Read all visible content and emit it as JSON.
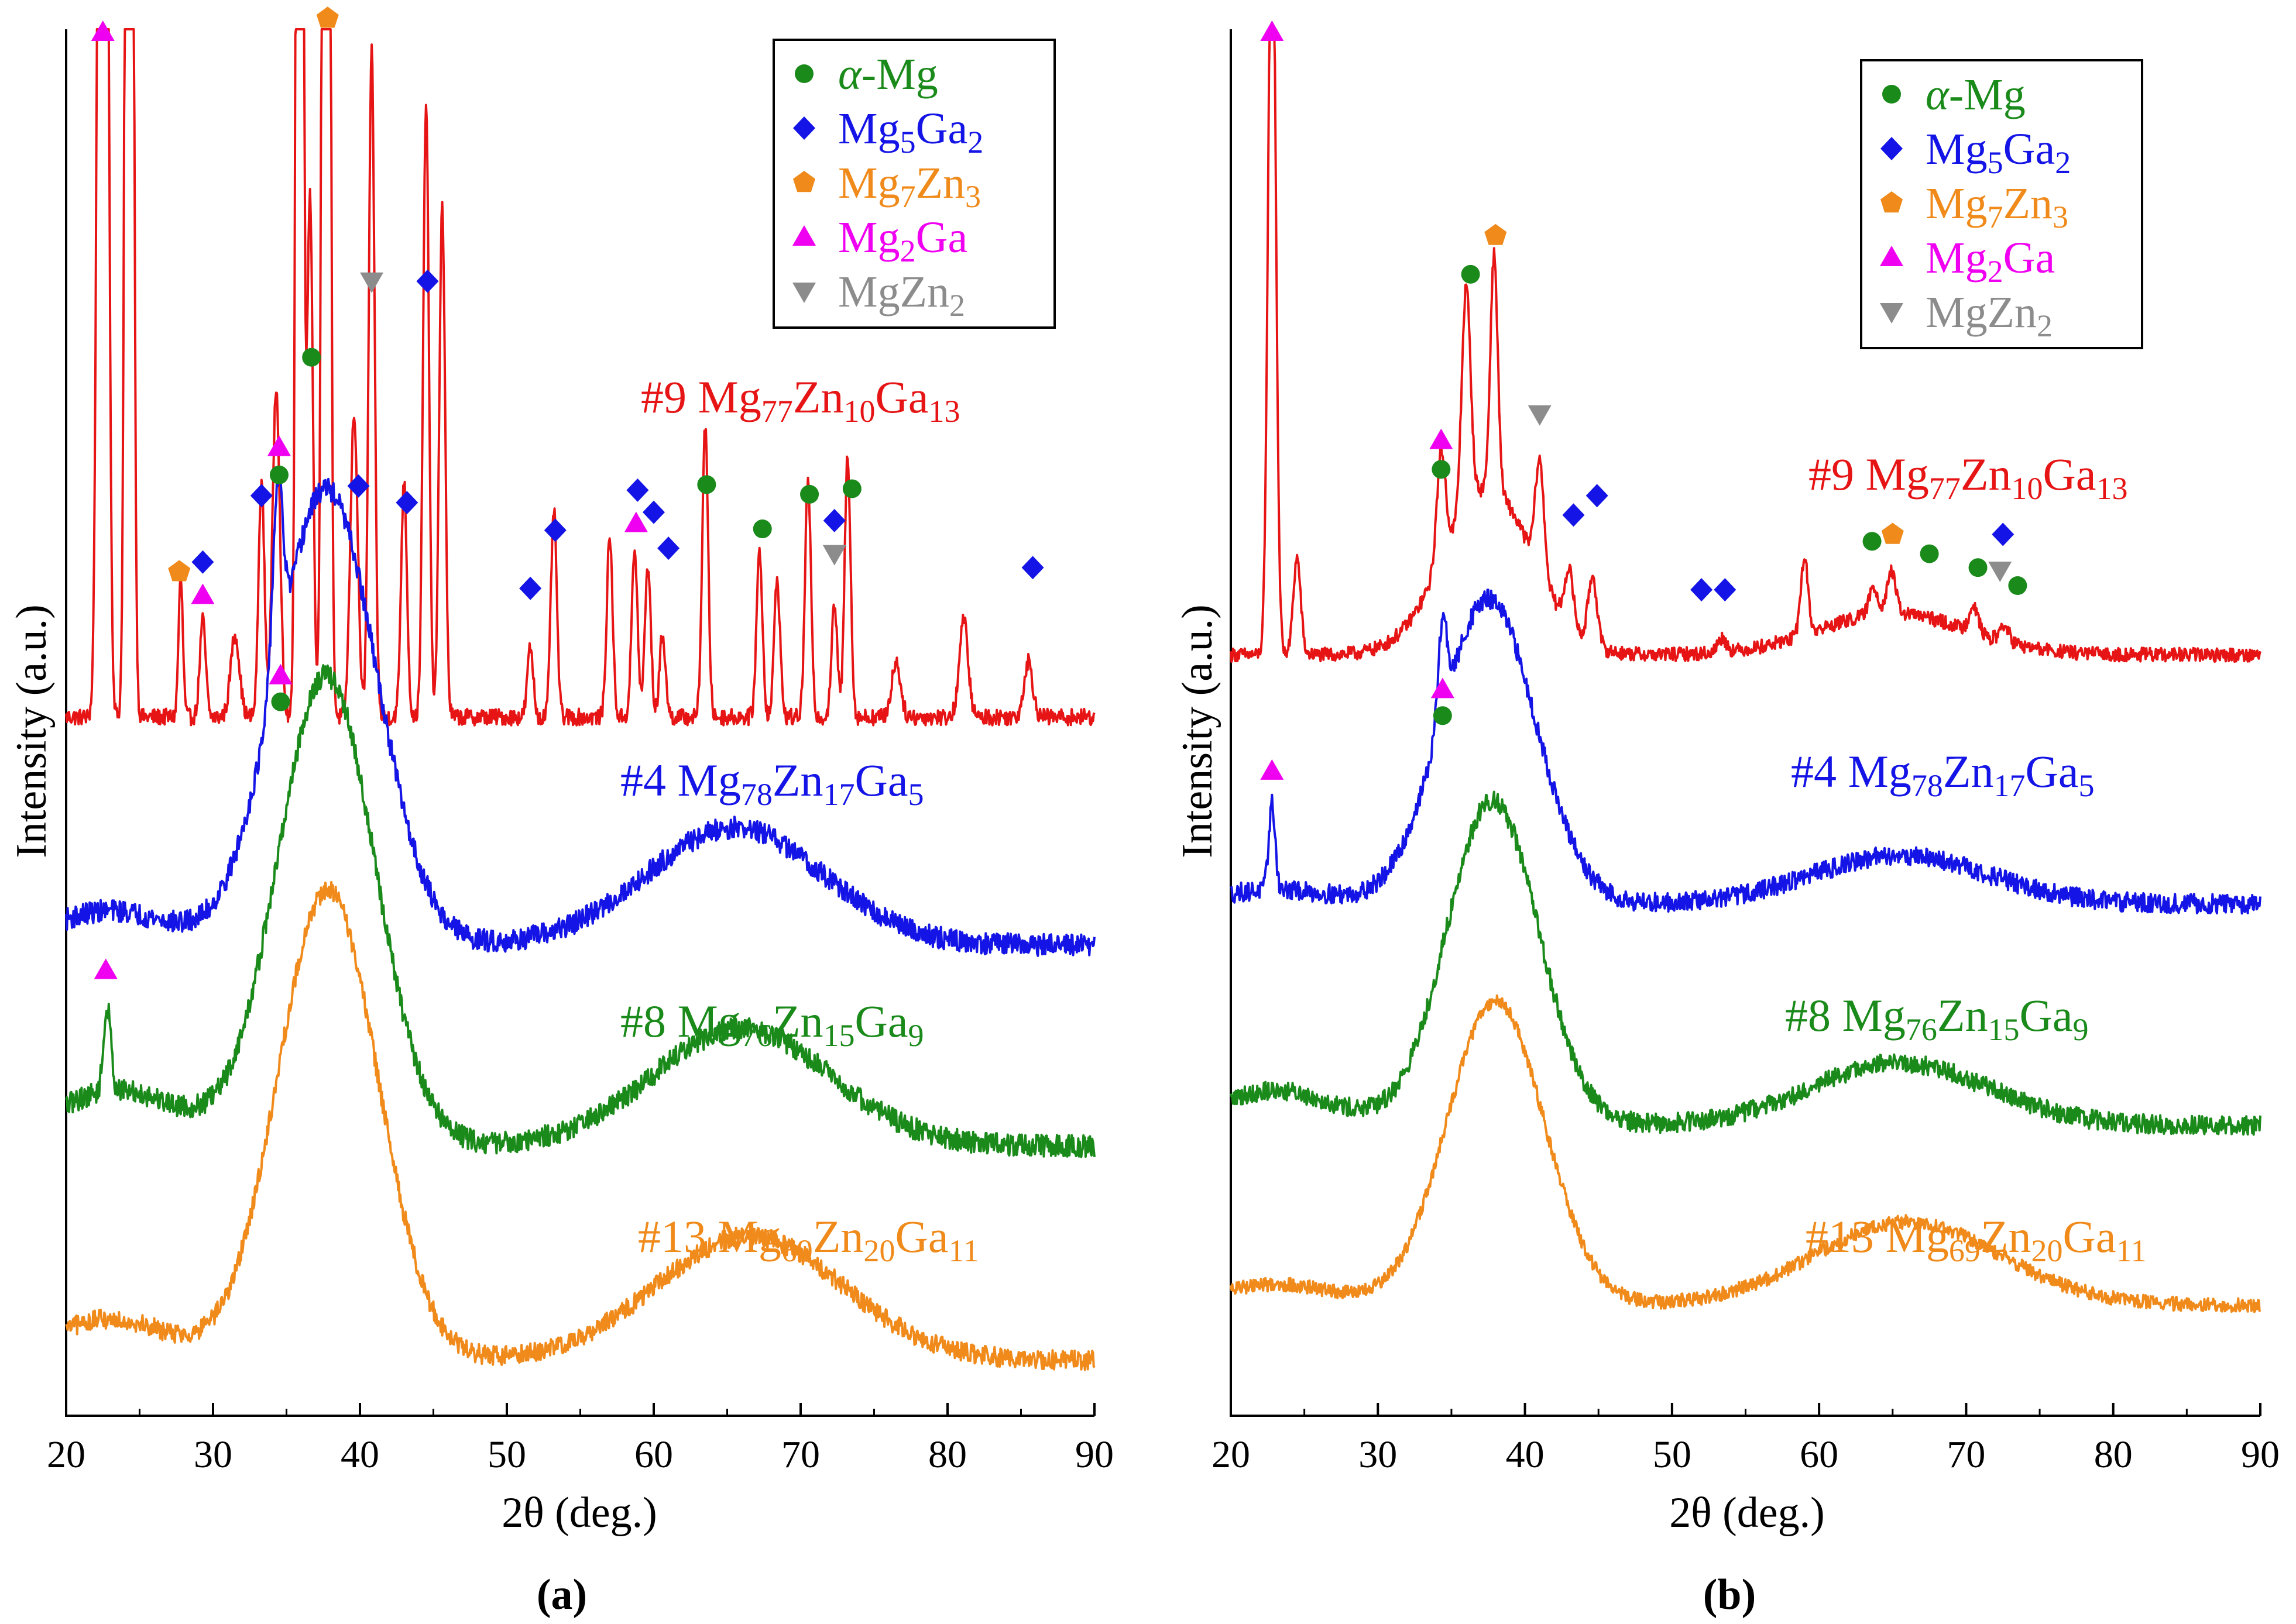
{
  "colors": {
    "alpha_mg": "#1a8a1a",
    "mg5ga2": "#1414e6",
    "mg7zn3": "#f08a1a",
    "mg2ga": "#f000f0",
    "mgzn2": "#8c8c8c",
    "s9": "#e61414",
    "s4": "#1414e6",
    "s8": "#1a8a1a",
    "s13": "#f08a1a",
    "axis": "#000000"
  },
  "chart_data": [
    {
      "type": "line",
      "panel_label": "a",
      "panel_caption": "(a)",
      "xlabel": "2θ (deg.)",
      "ylabel": "Intensity (a.u.)",
      "xlim": [
        20,
        90
      ],
      "xticks": [
        20,
        30,
        40,
        50,
        60,
        70,
        80,
        90
      ],
      "grid": false,
      "legend_position": "top-right",
      "legend": [
        {
          "key": "alpha_mg",
          "pre": "α",
          "base": "-Mg",
          "marker": "circle"
        },
        {
          "key": "mg5ga2",
          "base": "Mg",
          "sub1": "5",
          "mid": "Ga",
          "sub2": "2",
          "marker": "diamond"
        },
        {
          "key": "mg7zn3",
          "base": "Mg",
          "sub1": "7",
          "mid": "Zn",
          "sub2": "3",
          "marker": "pentagon"
        },
        {
          "key": "mg2ga",
          "base": "Mg",
          "sub1": "2",
          "mid": "Ga",
          "marker": "triangle-up"
        },
        {
          "key": "mgzn2",
          "base": "MgZn",
          "sub1": "2",
          "marker": "triangle-down"
        }
      ],
      "series": [
        {
          "id": "s9",
          "label_prefix": "#9 ",
          "parts": [
            "Mg",
            "77",
            "Zn",
            "10",
            "Ga",
            "13"
          ],
          "baseline": 0.505,
          "amorphous": [],
          "peaks": [
            [
              22.5,
              2.0,
              0.25
            ],
            [
              24.3,
              2.0,
              0.2
            ],
            [
              27.8,
              0.1,
              0.15
            ],
            [
              29.3,
              0.07,
              0.2
            ],
            [
              31.5,
              0.06,
              0.3
            ],
            [
              33.3,
              0.17,
              0.2
            ],
            [
              34.3,
              0.24,
              0.25
            ],
            [
              35.9,
              2.0,
              0.18
            ],
            [
              36.6,
              0.38,
              0.2
            ],
            [
              37.7,
              2.0,
              0.2
            ],
            [
              39.6,
              0.22,
              0.25
            ],
            [
              40.8,
              0.48,
              0.2
            ],
            [
              43.0,
              0.17,
              0.2
            ],
            [
              44.5,
              0.44,
              0.2
            ],
            [
              45.6,
              0.37,
              0.2
            ],
            [
              51.6,
              0.05,
              0.2
            ],
            [
              53.2,
              0.15,
              0.2
            ],
            [
              57.0,
              0.13,
              0.2
            ],
            [
              58.7,
              0.12,
              0.2
            ],
            [
              59.6,
              0.11,
              0.2
            ],
            [
              60.6,
              0.06,
              0.2
            ],
            [
              63.5,
              0.21,
              0.2
            ],
            [
              67.2,
              0.12,
              0.2
            ],
            [
              68.4,
              0.1,
              0.2
            ],
            [
              70.5,
              0.17,
              0.2
            ],
            [
              72.3,
              0.08,
              0.2
            ],
            [
              73.2,
              0.19,
              0.2
            ],
            [
              76.5,
              0.04,
              0.3
            ],
            [
              81.1,
              0.07,
              0.3
            ],
            [
              85.5,
              0.04,
              0.3
            ]
          ],
          "noise": 0.006
        },
        {
          "id": "s4",
          "label_prefix": "#4 ",
          "parts": [
            "Mg",
            "78",
            "Zn",
            "17",
            "Ga",
            "5"
          ],
          "baseline": 0.34,
          "amorphous": [
            [
              23.0,
              0.025,
              4.0
            ],
            [
              37.7,
              0.33,
              3.4
            ],
            [
              65.5,
              0.085,
              6.0
            ]
          ],
          "peaks": [
            [
              34.4,
              0.13,
              0.35
            ]
          ],
          "noise": 0.008
        },
        {
          "id": "s8",
          "label_prefix": "#8 ",
          "parts": [
            "Mg",
            "76",
            "Zn",
            "15",
            "Ga",
            "9"
          ],
          "baseline": 0.195,
          "amorphous": [
            [
              23.5,
              0.04,
              4.5
            ],
            [
              37.7,
              0.34,
              3.3
            ],
            [
              66.0,
              0.085,
              6.0
            ]
          ],
          "peaks": [
            [
              22.8,
              0.06,
              0.25
            ]
          ],
          "noise": 0.008
        },
        {
          "id": "s13",
          "label_prefix": "#13 ",
          "parts": [
            "Mg",
            "69",
            "Zn",
            "20",
            "Ga",
            "11"
          ],
          "baseline": 0.04,
          "amorphous": [
            [
              23.0,
              0.03,
              4.0
            ],
            [
              37.8,
              0.34,
              3.4
            ],
            [
              66.5,
              0.09,
              6.3
            ]
          ],
          "peaks": [],
          "noise": 0.007
        }
      ],
      "markers": [
        {
          "phase": "mg2ga",
          "x": 22.5,
          "y": 1.0
        },
        {
          "phase": "mg7zn3",
          "x": 37.8,
          "y": 1.01
        },
        {
          "phase": "mgzn2",
          "x": 40.8,
          "y": 0.82
        },
        {
          "phase": "mg5ga2",
          "x": 44.6,
          "y": 0.82
        },
        {
          "phase": "alpha_mg",
          "x": 36.7,
          "y": 0.765
        },
        {
          "phase": "mg2ga",
          "x": 34.5,
          "y": 0.7
        },
        {
          "phase": "alpha_mg",
          "x": 34.5,
          "y": 0.68
        },
        {
          "phase": "mg5ga2",
          "x": 33.3,
          "y": 0.665
        },
        {
          "phase": "mg5ga2",
          "x": 39.9,
          "y": 0.672
        },
        {
          "phase": "mg5ga2",
          "x": 43.2,
          "y": 0.66
        },
        {
          "phase": "mg5ga2",
          "x": 53.3,
          "y": 0.64
        },
        {
          "phase": "mg5ga2",
          "x": 58.9,
          "y": 0.669
        },
        {
          "phase": "mg5ga2",
          "x": 60.0,
          "y": 0.653
        },
        {
          "phase": "mg2ga",
          "x": 58.8,
          "y": 0.645
        },
        {
          "phase": "mg5ga2",
          "x": 61.0,
          "y": 0.627
        },
        {
          "phase": "alpha_mg",
          "x": 63.6,
          "y": 0.673
        },
        {
          "phase": "alpha_mg",
          "x": 67.4,
          "y": 0.641
        },
        {
          "phase": "alpha_mg",
          "x": 70.6,
          "y": 0.666
        },
        {
          "phase": "alpha_mg",
          "x": 73.5,
          "y": 0.67
        },
        {
          "phase": "mg5ga2",
          "x": 72.3,
          "y": 0.647
        },
        {
          "phase": "mgzn2",
          "x": 72.3,
          "y": 0.623
        },
        {
          "phase": "mg7zn3",
          "x": 27.7,
          "y": 0.61
        },
        {
          "phase": "mg5ga2",
          "x": 29.3,
          "y": 0.617
        },
        {
          "phase": "mg2ga",
          "x": 29.3,
          "y": 0.593
        },
        {
          "phase": "mg5ga2",
          "x": 51.6,
          "y": 0.598
        },
        {
          "phase": "mg5ga2",
          "x": 85.8,
          "y": 0.613
        },
        {
          "phase": "mg2ga",
          "x": 34.6,
          "y": 0.535
        },
        {
          "phase": "alpha_mg",
          "x": 34.6,
          "y": 0.516
        },
        {
          "phase": "mg2ga",
          "x": 22.7,
          "y": 0.322
        }
      ]
    },
    {
      "type": "line",
      "panel_label": "b",
      "panel_caption": "(b)",
      "xlabel": "2θ (deg.)",
      "ylabel": "Intensity (a.u.)",
      "xlim": [
        20,
        90
      ],
      "xticks": [
        20,
        30,
        40,
        50,
        60,
        70,
        80,
        90
      ],
      "grid": false,
      "legend_position": "top-right",
      "legend": [
        {
          "key": "alpha_mg",
          "pre": "α",
          "base": "-Mg",
          "marker": "circle"
        },
        {
          "key": "mg5ga2",
          "base": "Mg",
          "sub1": "5",
          "mid": "Ga",
          "sub2": "2",
          "marker": "diamond"
        },
        {
          "key": "mg7zn3",
          "base": "Mg",
          "sub1": "7",
          "mid": "Zn",
          "sub2": "3",
          "marker": "pentagon"
        },
        {
          "key": "mg2ga",
          "base": "Mg",
          "sub1": "2",
          "mid": "Ga",
          "marker": "triangle-up"
        },
        {
          "key": "mgzn2",
          "base": "MgZn",
          "sub1": "2",
          "marker": "triangle-down"
        }
      ],
      "series": [
        {
          "id": "s9",
          "label_prefix": "#9 ",
          "parts": [
            "Mg",
            "77",
            "Zn",
            "10",
            "Ga",
            "13"
          ],
          "baseline": 0.55,
          "amorphous": [
            [
              37.5,
              0.12,
              3.0
            ],
            [
              65.0,
              0.03,
              5.0
            ]
          ],
          "peaks": [
            [
              22.8,
              0.59,
              0.25
            ],
            [
              24.5,
              0.07,
              0.25
            ],
            [
              34.3,
              0.08,
              0.3
            ],
            [
              36.0,
              0.16,
              0.3
            ],
            [
              37.9,
              0.17,
              0.25
            ],
            [
              41.0,
              0.08,
              0.3
            ],
            [
              43.0,
              0.04,
              0.3
            ],
            [
              44.6,
              0.05,
              0.3
            ],
            [
              53.4,
              0.01,
              0.3
            ],
            [
              59.0,
              0.055,
              0.25
            ],
            [
              63.7,
              0.02,
              0.3
            ],
            [
              64.9,
              0.03,
              0.3
            ],
            [
              70.5,
              0.02,
              0.3
            ],
            [
              72.6,
              0.012,
              0.3
            ]
          ],
          "noise": 0.005
        },
        {
          "id": "s4",
          "label_prefix": "#4 ",
          "parts": [
            "Mg",
            "78",
            "Zn",
            "17",
            "Ga",
            "5"
          ],
          "baseline": 0.37,
          "amorphous": [
            [
              23.0,
              0.01,
              4.0
            ],
            [
              37.5,
              0.22,
              3.2
            ],
            [
              65.5,
              0.035,
              6.0
            ]
          ],
          "peaks": [
            [
              22.8,
              0.062,
              0.22
            ],
            [
              34.4,
              0.07,
              0.3
            ]
          ],
          "noise": 0.007
        },
        {
          "id": "s8",
          "label_prefix": "#8 ",
          "parts": [
            "Mg",
            "76",
            "Zn",
            "15",
            "Ga",
            "9"
          ],
          "baseline": 0.21,
          "amorphous": [
            [
              23.0,
              0.025,
              4.0
            ],
            [
              37.8,
              0.235,
              3.1
            ],
            [
              65.5,
              0.045,
              6.0
            ]
          ],
          "peaks": [],
          "noise": 0.007
        },
        {
          "id": "s13",
          "label_prefix": "#13 ",
          "parts": [
            "Mg",
            "69",
            "Zn",
            "20",
            "Ga",
            "11"
          ],
          "baseline": 0.08,
          "amorphous": [
            [
              23.0,
              0.015,
              4.0
            ],
            [
              38.0,
              0.22,
              3.3
            ],
            [
              66.0,
              0.06,
              6.3
            ]
          ],
          "peaks": [],
          "noise": 0.005
        }
      ],
      "markers": [
        {
          "phase": "mg2ga",
          "x": 22.8,
          "y": 1.0
        },
        {
          "phase": "mg7zn3",
          "x": 38.0,
          "y": 0.853
        },
        {
          "phase": "alpha_mg",
          "x": 36.3,
          "y": 0.825
        },
        {
          "phase": "mgzn2",
          "x": 41.0,
          "y": 0.724
        },
        {
          "phase": "mg2ga",
          "x": 34.3,
          "y": 0.705
        },
        {
          "phase": "alpha_mg",
          "x": 34.3,
          "y": 0.684
        },
        {
          "phase": "mg5ga2",
          "x": 43.3,
          "y": 0.651
        },
        {
          "phase": "mg5ga2",
          "x": 44.9,
          "y": 0.665
        },
        {
          "phase": "alpha_mg",
          "x": 63.6,
          "y": 0.632
        },
        {
          "phase": "mg7zn3",
          "x": 65.0,
          "y": 0.637
        },
        {
          "phase": "alpha_mg",
          "x": 67.5,
          "y": 0.623
        },
        {
          "phase": "alpha_mg",
          "x": 70.8,
          "y": 0.613
        },
        {
          "phase": "mg5ga2",
          "x": 72.5,
          "y": 0.637
        },
        {
          "phase": "mgzn2",
          "x": 72.3,
          "y": 0.611
        },
        {
          "phase": "alpha_mg",
          "x": 73.5,
          "y": 0.6
        },
        {
          "phase": "mg5ga2",
          "x": 52.0,
          "y": 0.597
        },
        {
          "phase": "mg5ga2",
          "x": 53.6,
          "y": 0.597
        },
        {
          "phase": "mg2ga",
          "x": 34.4,
          "y": 0.525
        },
        {
          "phase": "alpha_mg",
          "x": 34.4,
          "y": 0.506
        },
        {
          "phase": "mg2ga",
          "x": 22.8,
          "y": 0.466
        }
      ]
    }
  ]
}
